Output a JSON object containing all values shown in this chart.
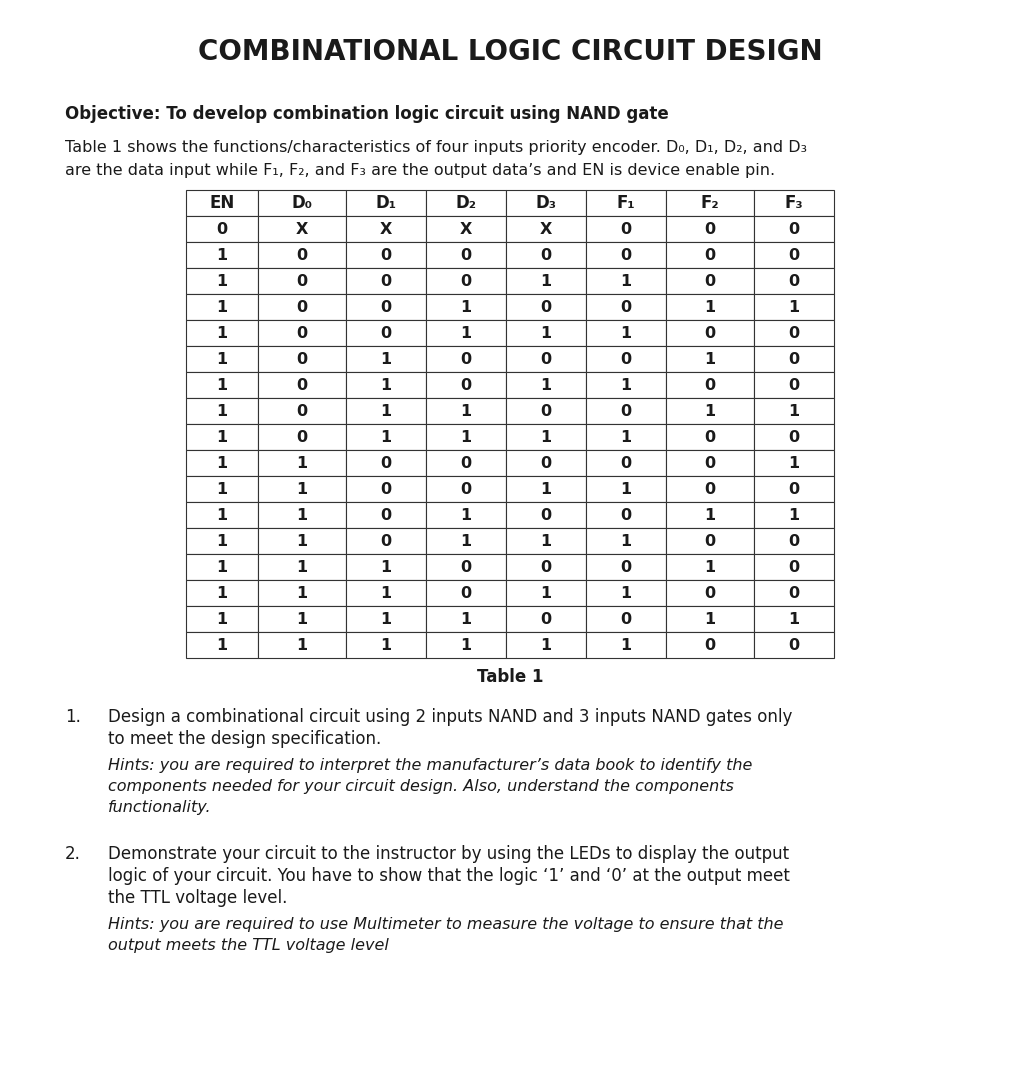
{
  "title": "COMBINATIONAL LOGIC CIRCUIT DESIGN",
  "objective_bold": "Objective: To develop combination logic circuit using NAND gate",
  "intro_line1": "Table 1 shows the functions/characteristics of four inputs priority encoder. D₀, D₁, D₂, and D₃",
  "intro_line2": "are the data input while F₁, F₂, and F₃ are the output data’s and EN is device enable pin.",
  "table_headers": [
    "EN",
    "D₀",
    "D₁",
    "D₂",
    "D₃",
    "F₁",
    "F₂",
    "F₃"
  ],
  "table_data": [
    [
      "0",
      "X",
      "X",
      "X",
      "X",
      "0",
      "0",
      "0"
    ],
    [
      "1",
      "0",
      "0",
      "0",
      "0",
      "0",
      "0",
      "0"
    ],
    [
      "1",
      "0",
      "0",
      "0",
      "1",
      "1",
      "0",
      "0"
    ],
    [
      "1",
      "0",
      "0",
      "1",
      "0",
      "0",
      "1",
      "1"
    ],
    [
      "1",
      "0",
      "0",
      "1",
      "1",
      "1",
      "0",
      "0"
    ],
    [
      "1",
      "0",
      "1",
      "0",
      "0",
      "0",
      "1",
      "0"
    ],
    [
      "1",
      "0",
      "1",
      "0",
      "1",
      "1",
      "0",
      "0"
    ],
    [
      "1",
      "0",
      "1",
      "1",
      "0",
      "0",
      "1",
      "1"
    ],
    [
      "1",
      "0",
      "1",
      "1",
      "1",
      "1",
      "0",
      "0"
    ],
    [
      "1",
      "1",
      "0",
      "0",
      "0",
      "0",
      "0",
      "1"
    ],
    [
      "1",
      "1",
      "0",
      "0",
      "1",
      "1",
      "0",
      "0"
    ],
    [
      "1",
      "1",
      "0",
      "1",
      "0",
      "0",
      "1",
      "1"
    ],
    [
      "1",
      "1",
      "0",
      "1",
      "1",
      "1",
      "0",
      "0"
    ],
    [
      "1",
      "1",
      "1",
      "0",
      "0",
      "0",
      "1",
      "0"
    ],
    [
      "1",
      "1",
      "1",
      "0",
      "1",
      "1",
      "0",
      "0"
    ],
    [
      "1",
      "1",
      "1",
      "1",
      "0",
      "0",
      "1",
      "1"
    ],
    [
      "1",
      "1",
      "1",
      "1",
      "1",
      "1",
      "0",
      "0"
    ]
  ],
  "table_caption": "Table 1",
  "item1_number": "1.",
  "item1_main1": "Design a combinational circuit using 2 inputs NAND and 3 inputs NAND gates only",
  "item1_main2": "to meet the design specification.",
  "item1_hint1": "Hints: you are required to interpret the manufacturer’s data book to identify the",
  "item1_hint2": "components needed for your circuit design. Also, understand the components",
  "item1_hint3": "functionality.",
  "item2_number": "2.",
  "item2_main1": "Demonstrate your circuit to the instructor by using the LEDs to display the output",
  "item2_main2": "logic of your circuit. You have to show that the logic ‘1’ and ‘0’ at the output meet",
  "item2_main3": "the TTL voltage level.",
  "item2_hint1": "Hints: you are required to use Multimeter to measure the voltage to ensure that the",
  "item2_hint2": "output meets the TTL voltage level",
  "bg_color": "#ffffff",
  "text_color": "#1a1a1a",
  "border_color": "#333333"
}
